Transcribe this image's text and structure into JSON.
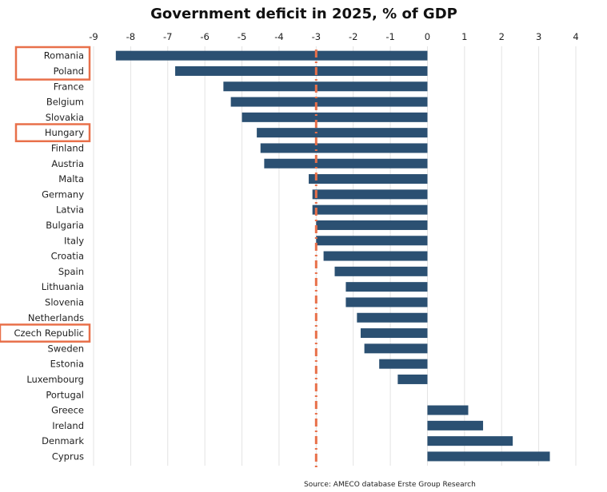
{
  "chart_data": {
    "type": "bar",
    "orientation": "horizontal",
    "title": "Government deficit in 2025, % of GDP",
    "xlabel": "",
    "ylabel": "",
    "xlim": [
      -9,
      4
    ],
    "xticks": [
      -9,
      -8,
      -7,
      -6,
      -5,
      -4,
      -3,
      -2,
      -1,
      0,
      1,
      2,
      3,
      4
    ],
    "grid": true,
    "categories": [
      "Romania",
      "Poland",
      "France",
      "Belgium",
      "Slovakia",
      "Hungary",
      "Finland",
      "Austria",
      "Malta",
      "Germany",
      "Latvia",
      "Bulgaria",
      "Italy",
      "Croatia",
      "Spain",
      "Lithuania",
      "Slovenia",
      "Netherlands",
      "Czech Republic",
      "Sweden",
      "Estonia",
      "Luxembourg",
      "Portugal",
      "Greece",
      "Ireland",
      "Denmark",
      "Cyprus"
    ],
    "values": [
      -8.4,
      -6.8,
      -5.5,
      -5.3,
      -5.0,
      -4.6,
      -4.5,
      -4.4,
      -3.2,
      -3.1,
      -3.1,
      -3.0,
      -3.0,
      -2.8,
      -2.5,
      -2.2,
      -2.2,
      -1.9,
      -1.8,
      -1.7,
      -1.3,
      -0.8,
      0.0,
      1.1,
      1.5,
      2.3,
      3.3
    ],
    "bar_color": "#2b5072",
    "reference_line": {
      "value": -3,
      "style": "dash-dot",
      "color": "#e8704a"
    },
    "highlighted_categories": [
      "Romania",
      "Poland",
      "Hungary",
      "Czech Republic"
    ],
    "highlight_color": "#e8704a",
    "source": "Source: AMECO database Erste Group Research"
  }
}
